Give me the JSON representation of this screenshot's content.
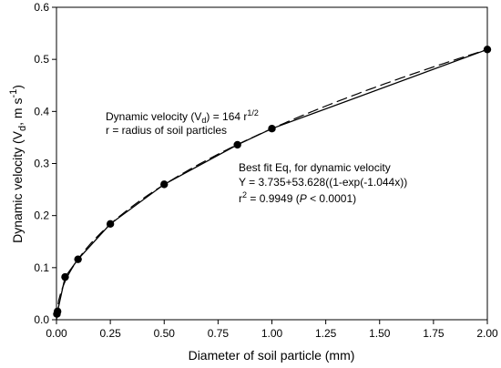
{
  "chart_data": {
    "type": "scatter",
    "xlabel": "Diameter of soil particle (mm)",
    "ylabel": {
      "prefix": "Dynamic velocity (V",
      "sub": "d",
      "middle": ", m s",
      "sup": "-1",
      "suffix": ")"
    },
    "xlim": [
      0,
      2.0
    ],
    "ylim": [
      0,
      0.6
    ],
    "x_ticks": [
      0.0,
      0.25,
      0.5,
      0.75,
      1.0,
      1.25,
      1.5,
      1.75,
      2.0
    ],
    "x_tick_labels": [
      "0.00",
      "0.25",
      "0.50",
      "0.75",
      "1.00",
      "1.25",
      "1.50",
      "1.75",
      "2.00"
    ],
    "y_ticks": [
      0.0,
      0.1,
      0.2,
      0.3,
      0.4,
      0.5,
      0.6
    ],
    "y_tick_labels": [
      "0.0",
      "0.1",
      "0.2",
      "0.3",
      "0.4",
      "0.5",
      "0.6"
    ],
    "grid": false,
    "series": [
      {
        "style": "markers-solid-line",
        "color": "#000000",
        "x": [
          0.002,
          0.005,
          0.04,
          0.1,
          0.25,
          0.5,
          0.84,
          1.0,
          2.0
        ],
        "y": [
          0.011,
          0.016,
          0.082,
          0.116,
          0.184,
          0.26,
          0.336,
          0.367,
          0.519
        ]
      },
      {
        "style": "dashed-fit",
        "color": "#000000",
        "equation": "Y = 3.735+53.628((1-exp(-1.044x))"
      }
    ],
    "annotations": {
      "eq1": {
        "prefix": "Dynamic velocity (V",
        "sub": "d",
        "middle": ") = 164 r",
        "sup": "1/2"
      },
      "eq1_note": "r = radius of soil particles",
      "fit_title": "Best fit Eq, for dynamic velocity",
      "fit_eq": "Y = 3.735+53.628((1-exp(-1.044x))",
      "fit_r2": {
        "r": "r",
        "sup": "2",
        "a": " = 0.9949 (",
        "p": "P",
        "b": " < 0.0001)"
      }
    }
  }
}
